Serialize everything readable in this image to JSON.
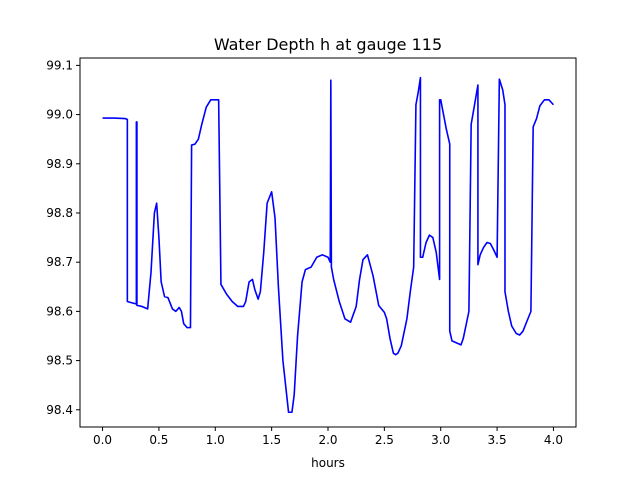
{
  "chart_data": {
    "type": "line",
    "title": "Water Depth h at gauge 115",
    "xlabel": "hours",
    "ylabel": "",
    "xlim": [
      -0.2,
      4.2
    ],
    "ylim": [
      98.365,
      99.115
    ],
    "xticks": [
      "0.0",
      "0.5",
      "1.0",
      "1.5",
      "2.0",
      "2.5",
      "3.0",
      "3.5",
      "4.0"
    ],
    "yticks": [
      "98.4",
      "98.5",
      "98.6",
      "98.7",
      "98.8",
      "98.9",
      "99.0",
      "99.1"
    ],
    "grid": false,
    "series": [
      {
        "color": "#0000ff",
        "x": [
          0.0,
          0.1,
          0.2,
          0.22,
          0.22,
          0.25,
          0.3,
          0.3,
          0.305,
          0.305,
          0.31,
          0.35,
          0.4,
          0.43,
          0.46,
          0.48,
          0.5,
          0.52,
          0.55,
          0.58,
          0.62,
          0.65,
          0.68,
          0.7,
          0.72,
          0.75,
          0.78,
          0.79,
          0.79,
          0.82,
          0.85,
          0.88,
          0.92,
          0.96,
          1.0,
          1.03,
          1.05,
          1.05,
          1.1,
          1.15,
          1.2,
          1.25,
          1.27,
          1.3,
          1.33,
          1.35,
          1.38,
          1.4,
          1.43,
          1.46,
          1.5,
          1.53,
          1.56,
          1.6,
          1.65,
          1.68,
          1.7,
          1.73,
          1.77,
          1.8,
          1.85,
          1.9,
          1.95,
          2.0,
          2.02,
          2.025,
          2.025,
          2.03,
          2.03,
          2.05,
          2.1,
          2.15,
          2.2,
          2.25,
          2.28,
          2.31,
          2.35,
          2.4,
          2.45,
          2.5,
          2.52,
          2.55,
          2.58,
          2.6,
          2.62,
          2.65,
          2.7,
          2.73,
          2.76,
          2.78,
          2.78,
          2.8,
          2.82,
          2.82,
          2.84,
          2.87,
          2.9,
          2.93,
          2.96,
          2.99,
          2.99,
          3.0,
          3.05,
          3.08,
          3.08,
          3.1,
          3.15,
          3.18,
          3.2,
          3.25,
          3.27,
          3.27,
          3.3,
          3.33,
          3.33,
          3.35,
          3.38,
          3.41,
          3.44,
          3.47,
          3.5,
          3.52,
          3.52,
          3.55,
          3.57,
          3.57,
          3.6,
          3.63,
          3.67,
          3.7,
          3.73,
          3.77,
          3.8,
          3.82,
          3.82,
          3.85,
          3.88,
          3.92,
          3.96,
          4.0
        ],
        "y": [
          98.993,
          98.993,
          98.992,
          98.99,
          98.62,
          98.618,
          98.615,
          98.985,
          98.985,
          98.612,
          98.612,
          98.61,
          98.605,
          98.68,
          98.8,
          98.82,
          98.75,
          98.66,
          98.63,
          98.628,
          98.605,
          98.6,
          98.608,
          98.6,
          98.575,
          98.567,
          98.567,
          98.938,
          98.938,
          98.94,
          98.95,
          98.98,
          99.015,
          99.03,
          99.03,
          99.03,
          98.66,
          98.655,
          98.635,
          98.62,
          98.61,
          98.61,
          98.62,
          98.66,
          98.665,
          98.645,
          98.625,
          98.64,
          98.72,
          98.82,
          98.843,
          98.79,
          98.65,
          98.5,
          98.395,
          98.395,
          98.43,
          98.55,
          98.66,
          98.685,
          98.69,
          98.71,
          98.715,
          98.71,
          98.7,
          99.07,
          99.07,
          98.69,
          98.69,
          98.665,
          98.62,
          98.585,
          98.578,
          98.61,
          98.665,
          98.705,
          98.715,
          98.672,
          98.612,
          98.598,
          98.585,
          98.545,
          98.515,
          98.512,
          98.515,
          98.53,
          98.585,
          98.64,
          98.69,
          99.02,
          99.02,
          99.045,
          99.075,
          98.71,
          98.71,
          98.74,
          98.755,
          98.75,
          98.72,
          98.665,
          99.03,
          99.03,
          98.97,
          98.94,
          98.56,
          98.54,
          98.535,
          98.532,
          98.545,
          98.6,
          98.98,
          98.98,
          99.02,
          99.06,
          98.695,
          98.715,
          98.73,
          98.74,
          98.738,
          98.725,
          98.71,
          99.072,
          99.072,
          99.05,
          99.02,
          98.64,
          98.6,
          98.57,
          98.555,
          98.552,
          98.56,
          98.583,
          98.6,
          98.975,
          98.975,
          98.992,
          99.018,
          99.03,
          99.03,
          99.02
        ]
      }
    ]
  }
}
